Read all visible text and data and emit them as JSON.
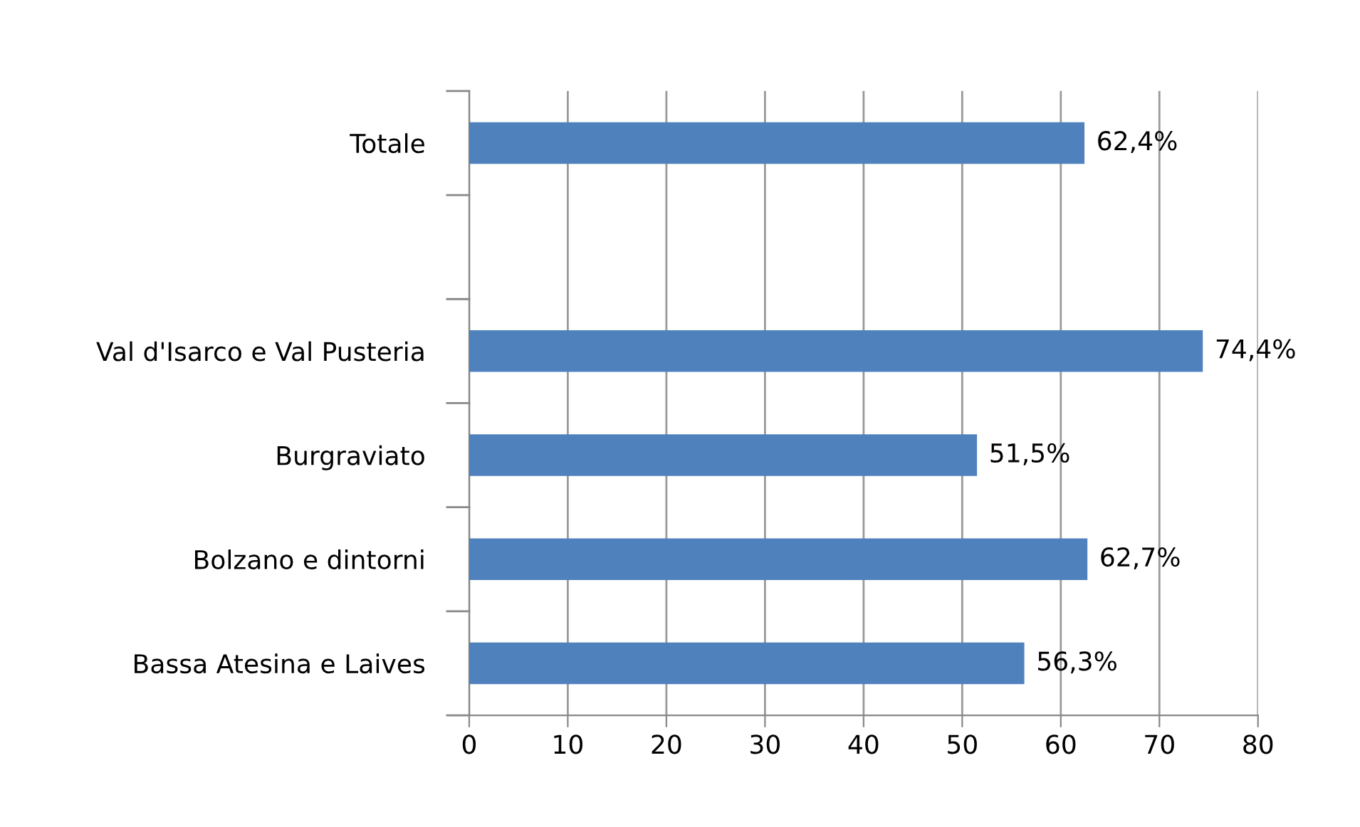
{
  "chart_data": {
    "type": "bar",
    "orientation": "horizontal",
    "categories": [
      "Totale",
      null,
      "Val d'Isarco e Val Pusteria",
      "Burgraviato",
      "Bolzano e dintorni",
      "Bassa Atesina e Laives"
    ],
    "values": [
      62.4,
      null,
      74.4,
      51.5,
      62.7,
      56.3
    ],
    "value_labels": [
      "62,4%",
      null,
      "74,4%",
      "51,5%",
      "62,7%",
      "56,3%"
    ],
    "color": "#4f81bd",
    "xlim": [
      0,
      80
    ],
    "xticks": [
      0,
      10,
      20,
      30,
      40,
      50,
      60,
      70,
      80
    ],
    "grid": "x",
    "legend": false
  }
}
